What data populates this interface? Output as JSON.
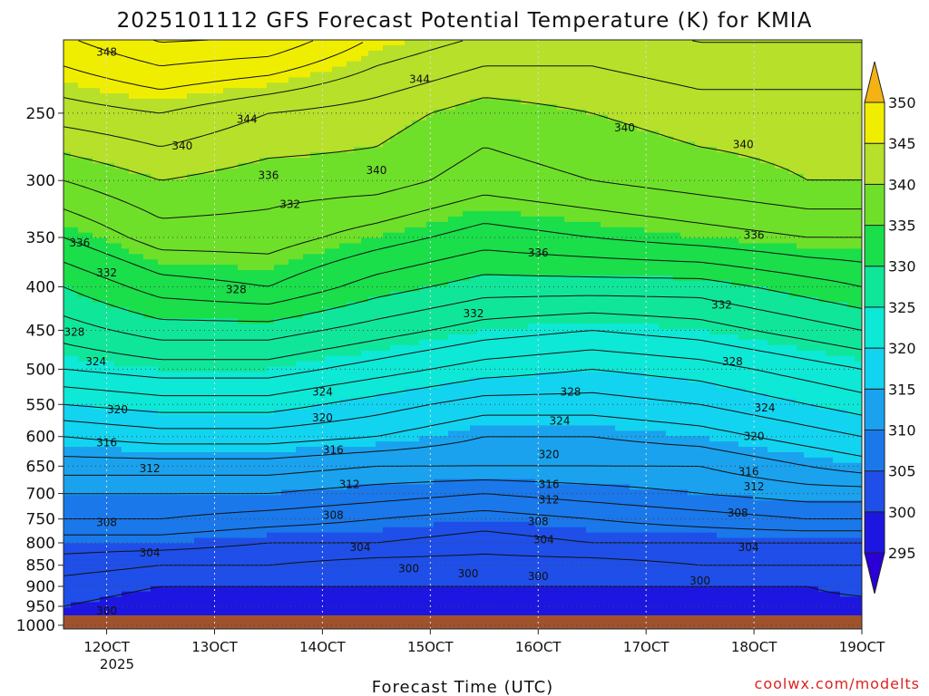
{
  "chart_data": {
    "type": "heatmap",
    "title": "2025101112 GFS Forecast Potential Temperature (K) for KMIA",
    "xlabel": "Forecast Time (UTC)",
    "ylabel": "",
    "credit": "coolwx.com/modelts",
    "x_ticks": [
      "12OCT",
      "13OCT",
      "14OCT",
      "15OCT",
      "16OCT",
      "17OCT",
      "18OCT",
      "19OCT"
    ],
    "x_year": "2025",
    "y_ticks": [
      1000,
      950,
      900,
      850,
      800,
      750,
      700,
      650,
      600,
      550,
      500,
      450,
      400,
      350,
      300,
      250
    ],
    "y_tick_labels": [
      "1000",
      "950",
      "900",
      "850",
      "800",
      "750",
      "700",
      "650",
      "600",
      "550",
      "500",
      "450",
      "400",
      "350",
      "300",
      "250"
    ],
    "ylim": [
      1010,
      205
    ],
    "xlim_days": [
      11.6,
      19.0
    ],
    "colorbar_ticks": [
      295,
      300,
      305,
      310,
      315,
      320,
      325,
      330,
      335,
      340,
      345,
      350
    ],
    "colorbar_tick_labels": [
      "295",
      "300",
      "305",
      "310",
      "315",
      "320",
      "325",
      "330",
      "335",
      "340",
      "345",
      "350"
    ],
    "color_bins": [
      {
        "lo": 290,
        "hi": 295,
        "color": "#2a00d6"
      },
      {
        "lo": 295,
        "hi": 300,
        "color": "#1d16e0"
      },
      {
        "lo": 300,
        "hi": 305,
        "color": "#1f4fe8"
      },
      {
        "lo": 305,
        "hi": 310,
        "color": "#1a78ea"
      },
      {
        "lo": 310,
        "hi": 315,
        "color": "#1aa2ee"
      },
      {
        "lo": 315,
        "hi": 320,
        "color": "#12d4f0"
      },
      {
        "lo": 320,
        "hi": 325,
        "color": "#0ee8d6"
      },
      {
        "lo": 325,
        "hi": 330,
        "color": "#10e69a"
      },
      {
        "lo": 330,
        "hi": 335,
        "color": "#1ade4a"
      },
      {
        "lo": 335,
        "hi": 340,
        "color": "#6ee02a"
      },
      {
        "lo": 340,
        "hi": 345,
        "color": "#b6e02a"
      },
      {
        "lo": 345,
        "hi": 350,
        "color": "#f0ee00"
      },
      {
        "lo": 350,
        "hi": 360,
        "color": "#f4b214"
      }
    ],
    "surface_color": "#a0522d",
    "series": [
      {
        "name": "theta 1000 hPa",
        "pressure": 1000,
        "time_days": [
          11.6,
          12.5,
          13.5,
          14.5,
          15.5,
          16.5,
          17.5,
          18.5,
          19.0
        ],
        "values": [
          299,
          298,
          298,
          298,
          298,
          298,
          298,
          298,
          298
        ]
      },
      {
        "name": "theta 950 hPa",
        "pressure": 950,
        "time_days": [
          11.6,
          12.5,
          13.5,
          14.5,
          15.5,
          16.5,
          17.5,
          18.5,
          19.0
        ],
        "values": [
          300,
          299,
          299,
          299,
          299,
          299,
          299,
          299,
          299
        ]
      },
      {
        "name": "theta 900 hPa",
        "pressure": 900,
        "time_days": [
          11.6,
          12.5,
          13.5,
          14.5,
          15.5,
          16.5,
          17.5,
          18.5,
          19.0
        ],
        "values": [
          301,
          300,
          300,
          300,
          300,
          300,
          300,
          300,
          301
        ]
      },
      {
        "name": "theta 850 hPa",
        "pressure": 850,
        "time_days": [
          11.6,
          12.5,
          13.5,
          14.5,
          15.5,
          16.5,
          17.5,
          18.5,
          19.0
        ],
        "values": [
          303,
          302,
          302,
          301,
          301,
          301,
          302,
          302,
          302
        ]
      },
      {
        "name": "theta 800 hPa",
        "pressure": 800,
        "time_days": [
          11.6,
          12.5,
          13.5,
          14.5,
          15.5,
          16.5,
          17.5,
          18.5,
          19.0
        ],
        "values": [
          305,
          305,
          304,
          304,
          303,
          304,
          304,
          304,
          304
        ]
      },
      {
        "name": "theta 750 hPa",
        "pressure": 750,
        "time_days": [
          11.6,
          12.5,
          13.5,
          14.5,
          15.5,
          16.5,
          17.5,
          18.5,
          19.0
        ],
        "values": [
          308,
          308,
          307,
          306,
          305,
          306,
          307,
          308,
          308
        ]
      },
      {
        "name": "theta 700 hPa",
        "pressure": 700,
        "time_days": [
          11.6,
          12.5,
          13.5,
          14.5,
          15.5,
          16.5,
          17.5,
          18.5,
          19.0
        ],
        "values": [
          310,
          310,
          310,
          309,
          308,
          309,
          310,
          311,
          311
        ]
      },
      {
        "name": "theta 650 hPa",
        "pressure": 650,
        "time_days": [
          11.6,
          12.5,
          13.5,
          14.5,
          15.5,
          16.5,
          17.5,
          18.5,
          19.0
        ],
        "values": [
          313,
          313,
          313,
          312,
          312,
          312,
          312,
          314,
          315
        ]
      },
      {
        "name": "theta 600 hPa",
        "pressure": 600,
        "time_days": [
          11.6,
          12.5,
          13.5,
          14.5,
          15.5,
          16.5,
          17.5,
          18.5,
          19.0
        ],
        "values": [
          316,
          317,
          317,
          316,
          314,
          314,
          315,
          317,
          318
        ]
      },
      {
        "name": "theta 550 hPa",
        "pressure": 550,
        "time_days": [
          11.6,
          12.5,
          13.5,
          14.5,
          15.5,
          16.5,
          17.5,
          18.5,
          19.0
        ],
        "values": [
          320,
          321,
          321,
          319,
          317,
          317,
          318,
          320,
          321
        ]
      },
      {
        "name": "theta 500 hPa",
        "pressure": 500,
        "time_days": [
          11.6,
          12.5,
          13.5,
          14.5,
          15.5,
          16.5,
          17.5,
          18.5,
          19.0
        ],
        "values": [
          324,
          325,
          325,
          323,
          321,
          320,
          321,
          323,
          324
        ]
      },
      {
        "name": "theta 450 hPa",
        "pressure": 450,
        "time_days": [
          11.6,
          12.5,
          13.5,
          14.5,
          15.5,
          16.5,
          17.5,
          18.5,
          19.0
        ],
        "values": [
          327,
          329,
          329,
          327,
          325,
          324,
          325,
          327,
          328
        ]
      },
      {
        "name": "theta 400 hPa",
        "pressure": 400,
        "time_days": [
          11.6,
          12.5,
          13.5,
          14.5,
          15.5,
          16.5,
          17.5,
          18.5,
          19.0
        ],
        "values": [
          330,
          333,
          334,
          331,
          329,
          329,
          329,
          331,
          332
        ]
      },
      {
        "name": "theta 350 hPa",
        "pressure": 350,
        "time_days": [
          11.6,
          12.5,
          13.5,
          14.5,
          15.5,
          16.5,
          17.5,
          18.5,
          19.0
        ],
        "values": [
          334,
          337,
          337,
          335,
          333,
          334,
          335,
          336,
          336
        ]
      },
      {
        "name": "theta 300 hPa",
        "pressure": 300,
        "time_days": [
          11.6,
          12.5,
          13.5,
          14.5,
          15.5,
          16.5,
          17.5,
          18.5,
          19.0
        ],
        "values": [
          338,
          340,
          339,
          339,
          337,
          338,
          339,
          340,
          340
        ]
      },
      {
        "name": "theta 250 hPa",
        "pressure": 250,
        "time_days": [
          11.6,
          12.5,
          13.5,
          14.5,
          15.5,
          16.5,
          17.5,
          18.5,
          19.0
        ],
        "values": [
          343,
          344,
          342,
          341,
          339,
          340,
          341,
          341,
          341
        ]
      },
      {
        "name": "theta 220 hPa",
        "pressure": 220,
        "time_days": [
          11.6,
          12.5,
          13.5,
          14.5,
          15.5,
          16.5,
          17.5,
          18.5,
          19.0
        ],
        "values": [
          346,
          348,
          347,
          344,
          342,
          342,
          343,
          343,
          343
        ]
      }
    ],
    "contour_labels": [
      {
        "text": "348",
        "day": 12.0,
        "pressure": 212
      },
      {
        "text": "344",
        "day": 14.9,
        "pressure": 228
      },
      {
        "text": "344",
        "day": 13.3,
        "pressure": 254
      },
      {
        "text": "340",
        "day": 12.7,
        "pressure": 273
      },
      {
        "text": "340",
        "day": 16.8,
        "pressure": 260
      },
      {
        "text": "340",
        "day": 17.9,
        "pressure": 272
      },
      {
        "text": "340",
        "day": 14.5,
        "pressure": 292
      },
      {
        "text": "336",
        "day": 13.5,
        "pressure": 296
      },
      {
        "text": "336",
        "day": 11.75,
        "pressure": 355
      },
      {
        "text": "336",
        "day": 16.0,
        "pressure": 365
      },
      {
        "text": "336",
        "day": 18.0,
        "pressure": 348
      },
      {
        "text": "332",
        "day": 13.7,
        "pressure": 320
      },
      {
        "text": "332",
        "day": 12.0,
        "pressure": 385
      },
      {
        "text": "332",
        "day": 15.4,
        "pressure": 430
      },
      {
        "text": "332",
        "day": 17.7,
        "pressure": 420
      },
      {
        "text": "328",
        "day": 13.2,
        "pressure": 403
      },
      {
        "text": "328",
        "day": 11.7,
        "pressure": 452
      },
      {
        "text": "328",
        "day": 16.3,
        "pressure": 532
      },
      {
        "text": "328",
        "day": 17.8,
        "pressure": 490
      },
      {
        "text": "324",
        "day": 11.9,
        "pressure": 490
      },
      {
        "text": "324",
        "day": 14.0,
        "pressure": 532
      },
      {
        "text": "324",
        "day": 16.2,
        "pressure": 575
      },
      {
        "text": "324",
        "day": 18.1,
        "pressure": 555
      },
      {
        "text": "320",
        "day": 12.1,
        "pressure": 558
      },
      {
        "text": "320",
        "day": 14.0,
        "pressure": 570
      },
      {
        "text": "320",
        "day": 16.1,
        "pressure": 630
      },
      {
        "text": "320",
        "day": 18.0,
        "pressure": 600
      },
      {
        "text": "316",
        "day": 12.0,
        "pressure": 610
      },
      {
        "text": "316",
        "day": 14.1,
        "pressure": 622
      },
      {
        "text": "316",
        "day": 16.1,
        "pressure": 683
      },
      {
        "text": "316",
        "day": 17.95,
        "pressure": 660
      },
      {
        "text": "312",
        "day": 12.4,
        "pressure": 654
      },
      {
        "text": "312",
        "day": 14.25,
        "pressure": 683
      },
      {
        "text": "312",
        "day": 16.1,
        "pressure": 712
      },
      {
        "text": "312",
        "day": 18.0,
        "pressure": 687
      },
      {
        "text": "308",
        "day": 12.0,
        "pressure": 757
      },
      {
        "text": "308",
        "day": 14.1,
        "pressure": 742
      },
      {
        "text": "308",
        "day": 16.0,
        "pressure": 755
      },
      {
        "text": "308",
        "day": 17.85,
        "pressure": 738
      },
      {
        "text": "304",
        "day": 12.4,
        "pressure": 822
      },
      {
        "text": "304",
        "day": 14.35,
        "pressure": 810
      },
      {
        "text": "304",
        "day": 16.05,
        "pressure": 793
      },
      {
        "text": "304",
        "day": 17.95,
        "pressure": 810
      },
      {
        "text": "300",
        "day": 14.8,
        "pressure": 858
      },
      {
        "text": "300",
        "day": 15.35,
        "pressure": 870
      },
      {
        "text": "300",
        "day": 16.0,
        "pressure": 876
      },
      {
        "text": "300",
        "day": 17.5,
        "pressure": 887
      },
      {
        "text": "300",
        "day": 12.0,
        "pressure": 962
      }
    ]
  }
}
